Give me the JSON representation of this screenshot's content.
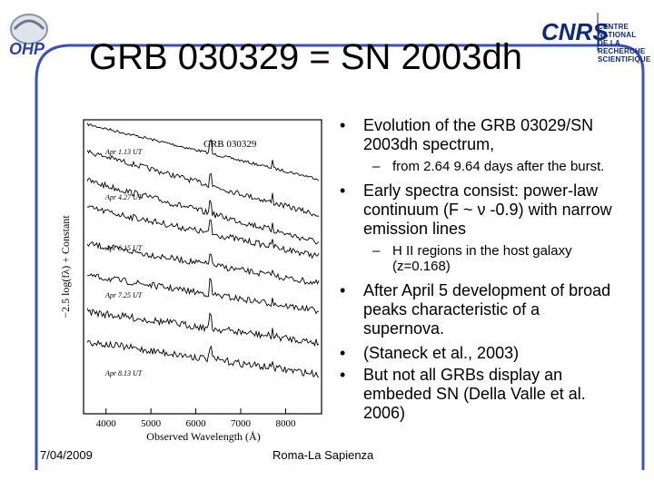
{
  "slide": {
    "title": "GRB 030329 = SN 2003dh",
    "logo_left": "OHP",
    "logo_right": "CNRS",
    "org_name_lines": [
      "CENTRE NATIONAL",
      "DE LA RECHERCHE",
      "SCIENTIFIQUE"
    ]
  },
  "figure": {
    "label": "GRB 030329",
    "ylabel": "−2.5 log(fλ) + Constant",
    "xlabel": "Observed Wavelength (Å)",
    "xticks": [
      "4000",
      "5000",
      "6000",
      "7000",
      "8000"
    ],
    "spectra_labels": [
      "Apr 1.13 UT",
      "Apr 4.27 UT",
      "Apr 6.15 UT",
      "Apr 7.25 UT",
      "Apr 8.13 UT"
    ]
  },
  "bullets": [
    {
      "text": "Evolution of the GRB 03029/SN 2003dh spectrum,",
      "sub": [
        "from 2.64 9.64 days after the burst."
      ]
    },
    {
      "text": "Early spectra consist: power-law continuum (F ~ ν -0.9) with narrow emission lines",
      "sub": [
        " H II regions in the host galaxy (z=0.168)"
      ]
    },
    {
      "text": "After April 5 development of broad peaks characteristic of a supernova.",
      "sub": []
    },
    {
      "text": "(Staneck et al., 2003)",
      "sub": []
    },
    {
      "text": "But not all GRBs display an embeded SN (Della Valle et al. 2006)",
      "sub": []
    }
  ],
  "footer": {
    "date": "7/04/2009",
    "venue": "Roma-La Sapienza"
  },
  "colors": {
    "frame": "#3a4fc0",
    "cnrs_blue": "#0b2a78",
    "text": "#000000"
  }
}
